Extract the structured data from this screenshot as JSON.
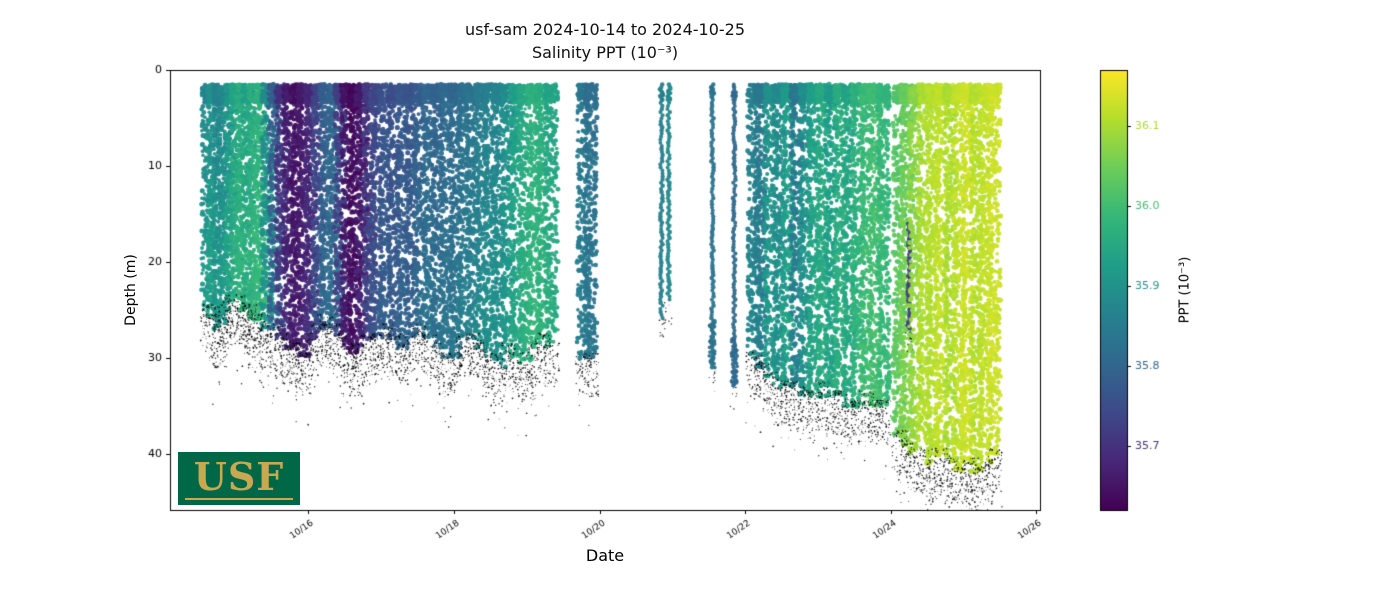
{
  "meta": {
    "title": "usf-sam 2024-10-14 to 2024-10-25",
    "subtitle": "Salinity PPT (10⁻³)"
  },
  "logo": {
    "text": "USF",
    "bg": "#006747",
    "fg": "#C8A951"
  },
  "colors": {
    "background": "#ffffff",
    "axis": "#000000",
    "seafloor_speckle": "#000000"
  },
  "chart_data": {
    "type": "scatter",
    "title": "usf-sam 2024-10-14 to 2024-10-25",
    "subtitle": "Salinity PPT (10⁻³)",
    "xlabel": "Date",
    "ylabel": "Depth (m)",
    "x_domain": [
      14.1,
      26.05
    ],
    "y_domain": [
      0,
      45.8
    ],
    "y_inverted": true,
    "grid": false,
    "xticks": [
      {
        "v": 16,
        "label": "10/16"
      },
      {
        "v": 18,
        "label": "10/18"
      },
      {
        "v": 20,
        "label": "10/20"
      },
      {
        "v": 22,
        "label": "10/22"
      },
      {
        "v": 24,
        "label": "10/24"
      },
      {
        "v": 26,
        "label": "10/26"
      }
    ],
    "yticks": [
      0,
      10,
      20,
      30,
      40
    ],
    "colorbar": {
      "label": "PPT (10⁻³)",
      "vmin": 35.62,
      "vmax": 36.17,
      "ticks": [
        35.7,
        35.8,
        35.9,
        36.0,
        36.1
      ]
    },
    "colormap": "viridis",
    "profile_fields": [
      "t_day_october",
      "max_depth_m",
      "salinity_ppt",
      "kind_0dense_1line",
      "salinity_depth_gradient",
      "start_depth_m_optional"
    ],
    "profiles": [
      [
        14.62,
        25,
        35.87,
        0,
        0.05
      ],
      [
        14.7,
        26,
        35.9,
        0,
        0.04
      ],
      [
        14.78,
        27,
        35.86,
        0,
        0.05
      ],
      [
        14.86,
        25,
        35.88,
        0,
        0.05
      ],
      [
        14.94,
        24,
        35.91,
        0,
        0.04
      ],
      [
        15.02,
        24,
        35.94,
        0,
        0.03
      ],
      [
        15.1,
        25,
        35.96,
        0,
        0.02
      ],
      [
        15.18,
        25,
        35.93,
        0,
        0.03
      ],
      [
        15.26,
        26,
        35.96,
        0,
        0.02
      ],
      [
        15.34,
        26,
        35.97,
        0,
        0.02
      ],
      [
        15.44,
        27,
        35.88,
        0,
        0.03
      ],
      [
        15.54,
        27,
        35.78,
        0,
        0.02
      ],
      [
        15.64,
        28,
        35.7,
        0,
        0.02
      ],
      [
        15.74,
        29,
        35.66,
        0,
        0.02
      ],
      [
        15.84,
        29,
        35.64,
        0,
        0.02
      ],
      [
        15.94,
        30,
        35.66,
        0,
        0.02
      ],
      [
        16.04,
        28,
        35.68,
        0,
        0.02
      ],
      [
        16.14,
        27,
        35.73,
        0,
        0.03
      ],
      [
        16.24,
        26,
        35.78,
        0,
        0.03
      ],
      [
        16.34,
        27,
        35.8,
        0,
        0.02
      ],
      [
        16.44,
        28,
        35.72,
        0,
        0.02
      ],
      [
        16.54,
        29,
        35.65,
        0,
        0.01
      ],
      [
        16.64,
        30,
        35.63,
        0,
        0.01
      ],
      [
        16.74,
        29,
        35.66,
        0,
        0.02
      ],
      [
        16.84,
        28,
        35.71,
        0,
        0.03
      ],
      [
        16.94,
        28,
        35.74,
        0,
        0.03
      ],
      [
        17.06,
        27,
        35.76,
        0,
        0.03
      ],
      [
        17.18,
        28,
        35.75,
        0,
        0.03
      ],
      [
        17.3,
        29,
        35.77,
        0,
        0.03
      ],
      [
        17.42,
        28,
        35.76,
        0,
        0.03
      ],
      [
        17.54,
        27,
        35.78,
        0,
        0.04
      ],
      [
        17.66,
        28,
        35.8,
        0,
        0.04
      ],
      [
        17.78,
        29,
        35.79,
        0,
        0.03
      ],
      [
        17.9,
        30,
        35.81,
        0,
        0.03
      ],
      [
        18.02,
        30,
        35.8,
        0,
        0.04
      ],
      [
        18.14,
        28,
        35.82,
        0,
        0.04
      ],
      [
        18.26,
        28,
        35.83,
        0,
        0.04
      ],
      [
        18.38,
        29,
        35.85,
        0,
        0.04
      ],
      [
        18.5,
        30,
        35.86,
        0,
        0.04
      ],
      [
        18.62,
        31,
        35.87,
        0,
        0.03
      ],
      [
        18.74,
        29,
        35.89,
        0,
        0.03
      ],
      [
        18.86,
        30,
        35.93,
        0,
        0.02
      ],
      [
        18.98,
        31,
        35.95,
        0,
        0.02
      ],
      [
        19.1,
        29,
        35.97,
        0,
        0.01
      ],
      [
        19.22,
        28,
        35.96,
        0,
        0.02
      ],
      [
        19.34,
        29,
        35.94,
        0,
        0.02
      ],
      [
        19.78,
        30,
        35.84,
        0,
        0.02
      ],
      [
        19.88,
        30,
        35.82,
        0,
        0.02
      ],
      [
        20.85,
        26,
        35.86,
        1,
        0
      ],
      [
        20.95,
        24,
        35.88,
        1,
        0
      ],
      [
        21.55,
        31,
        35.83,
        1,
        0
      ],
      [
        21.85,
        33,
        35.81,
        1,
        0
      ],
      [
        22.12,
        30,
        35.86,
        0,
        0.02
      ],
      [
        22.22,
        31,
        35.84,
        0,
        0.02
      ],
      [
        22.35,
        32,
        35.9,
        0,
        0.02
      ],
      [
        22.47,
        33,
        35.88,
        0,
        0.02
      ],
      [
        22.59,
        33,
        35.92,
        0,
        0.02
      ],
      [
        22.71,
        33,
        35.84,
        0,
        0.02
      ],
      [
        22.83,
        34,
        35.89,
        0,
        0.02
      ],
      [
        22.95,
        34,
        35.93,
        0,
        0.02
      ],
      [
        23.07,
        33,
        35.95,
        0,
        0.01
      ],
      [
        23.19,
        34,
        35.92,
        0,
        0.02
      ],
      [
        23.31,
        34,
        35.96,
        0,
        0.01
      ],
      [
        23.43,
        35,
        35.94,
        0,
        0.01
      ],
      [
        23.55,
        35,
        35.97,
        0,
        0.01
      ],
      [
        23.67,
        34,
        35.99,
        0,
        0.01
      ],
      [
        23.79,
        35,
        36.0,
        0,
        0.01
      ],
      [
        23.9,
        35,
        35.98,
        0,
        0.01
      ],
      [
        24.12,
        38,
        36.02,
        0,
        0.02
      ],
      [
        24.22,
        39,
        36.04,
        0,
        0.03
      ],
      [
        24.25,
        27,
        35.72,
        1,
        0,
        16
      ],
      [
        24.34,
        40,
        36.07,
        0,
        0.02
      ],
      [
        24.46,
        40,
        36.1,
        0,
        0.01
      ],
      [
        24.58,
        41,
        36.11,
        0,
        0
      ],
      [
        24.7,
        40,
        36.12,
        0,
        0
      ],
      [
        24.82,
        41,
        36.1,
        0,
        0
      ],
      [
        24.94,
        42,
        36.12,
        0,
        0
      ],
      [
        25.06,
        41,
        36.13,
        0,
        0
      ],
      [
        25.18,
        42,
        36.11,
        0,
        0
      ],
      [
        25.3,
        41,
        36.12,
        0,
        0
      ],
      [
        25.42,
        40,
        36.13,
        0,
        0
      ]
    ],
    "seafloor_speckle": true
  }
}
